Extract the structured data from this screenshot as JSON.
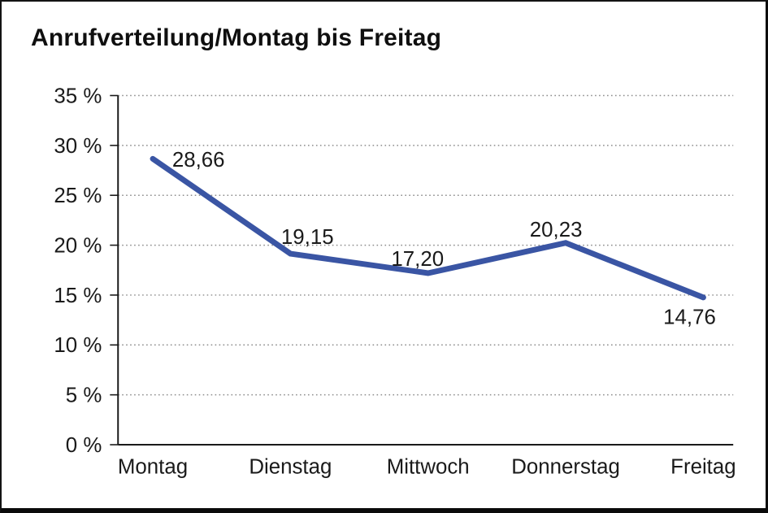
{
  "window": {
    "background_color": "#ffffff",
    "border_color": "#0a0a0a"
  },
  "chart_data": {
    "type": "line",
    "title": "Anrufverteilung/Montag bis Freitag",
    "categories": [
      "Montag",
      "Dienstag",
      "Mittwoch",
      "Donnerstag",
      "Freitag"
    ],
    "series": [
      {
        "name": "Anrufverteilung",
        "values": [
          28.66,
          19.15,
          17.2,
          20.23,
          14.76
        ]
      }
    ],
    "data_labels": [
      "28,66",
      "19,15",
      "17,20",
      "20,23",
      "14,76"
    ],
    "xlabel": "",
    "ylabel": "",
    "y_axis": {
      "min": 0,
      "max": 35,
      "step": 5,
      "unit": "%",
      "tick_labels": [
        "0 %",
        "5 %",
        "10 %",
        "15 %",
        "20 %",
        "25 %",
        "30 %",
        "35 %"
      ]
    },
    "grid": "dotted horizontal gridlines at each 5 % step",
    "legend_position": "none",
    "line_color": "#3A55A4",
    "axis_color": "#1a1a1a",
    "grid_color": "#8c8c8c",
    "text_color": "#1a1a1a"
  }
}
